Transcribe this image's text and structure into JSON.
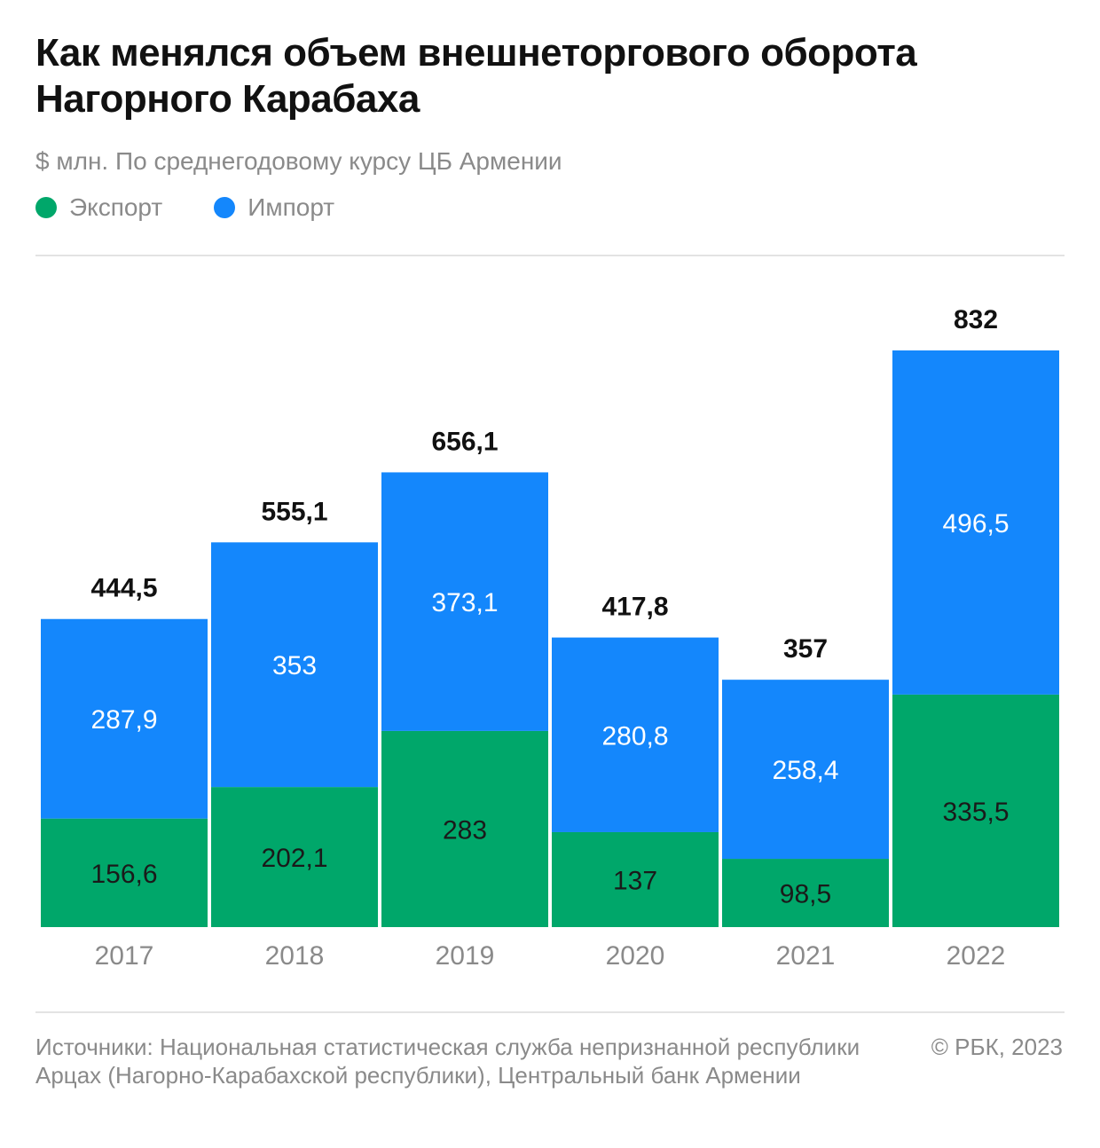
{
  "header": {
    "title": "Как менялся объем внешнеторгового оборота Нагорного Карабаха",
    "subtitle": "$ млн. По среднегодовому курсу ЦБ Армении"
  },
  "legend": {
    "export_label": "Экспорт",
    "import_label": "Импорт"
  },
  "colors": {
    "export": "#00a76a",
    "import": "#1487fc"
  },
  "chart_data": {
    "type": "bar",
    "stacked": true,
    "categories": [
      "2017",
      "2018",
      "2019",
      "2020",
      "2021",
      "2022"
    ],
    "series": [
      {
        "name": "Экспорт",
        "values": [
          156.6,
          202.1,
          283,
          137,
          98.5,
          335.5
        ],
        "labels": [
          "156,6",
          "202,1",
          "283",
          "137",
          "98,5",
          "335,5"
        ]
      },
      {
        "name": "Импорт",
        "values": [
          287.9,
          353,
          373.1,
          280.8,
          258.4,
          496.5
        ],
        "labels": [
          "287,9",
          "353",
          "373,1",
          "280,8",
          "258,4",
          "496,5"
        ]
      }
    ],
    "totals": [
      444.5,
      555.1,
      656.1,
      417.8,
      357,
      832
    ],
    "total_labels": [
      "444,5",
      "555,1",
      "656,1",
      "417,8",
      "357",
      "832"
    ],
    "ylim": [
      0,
      832
    ],
    "grid": false,
    "legend_position": "top-left"
  },
  "footer": {
    "source": "Источники: Национальная статистическая служба непризнанной республики Арцах (Нагорно-Карабахской республики), Центральный банк Армении",
    "copyright": "© РБК, 2023"
  }
}
